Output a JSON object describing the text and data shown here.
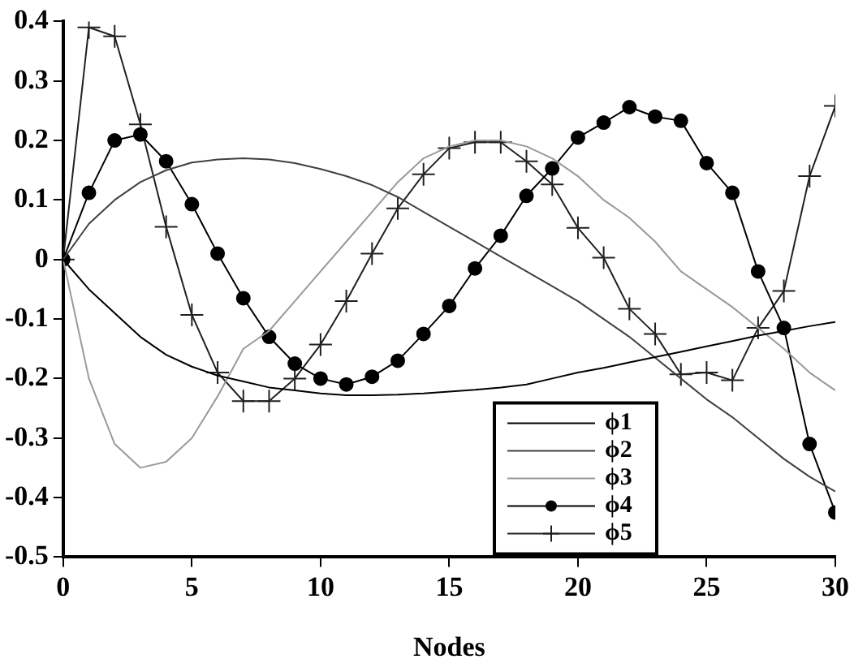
{
  "chart_data": {
    "type": "line",
    "xlabel": "Nodes",
    "x": [
      0,
      1,
      2,
      3,
      4,
      5,
      6,
      7,
      8,
      9,
      10,
      11,
      12,
      13,
      14,
      15,
      16,
      17,
      18,
      19,
      20,
      21,
      22,
      23,
      24,
      25,
      26,
      27,
      28,
      29,
      30
    ],
    "xlim": [
      0,
      30
    ],
    "xticks": [
      0,
      5,
      10,
      15,
      20,
      25,
      30
    ],
    "ylim": [
      -0.5,
      0.4
    ],
    "yticks": [
      -0.5,
      -0.4,
      -0.3,
      -0.2,
      -0.1,
      0,
      0.1,
      0.2,
      0.3,
      0.4
    ],
    "grid": false,
    "legend": "bottom right",
    "line_style": "solid",
    "series": [
      {
        "name": "ϕ1",
        "color": "#000000",
        "marker": "none",
        "values": [
          0,
          -0.05,
          -0.09,
          -0.13,
          -0.16,
          -0.18,
          -0.195,
          -0.205,
          -0.215,
          -0.22,
          -0.225,
          -0.228,
          -0.228,
          -0.227,
          -0.225,
          -0.222,
          -0.219,
          -0.215,
          -0.21,
          -0.2,
          -0.19,
          -0.182,
          -0.173,
          -0.164,
          -0.155,
          -0.146,
          -0.137,
          -0.128,
          -0.12,
          -0.112,
          -0.105
        ]
      },
      {
        "name": "ϕ2",
        "color": "#404040",
        "marker": "none",
        "values": [
          0,
          0.06,
          0.1,
          0.13,
          0.15,
          0.163,
          0.168,
          0.17,
          0.168,
          0.162,
          0.152,
          0.14,
          0.125,
          0.105,
          0.08,
          0.055,
          0.03,
          0.005,
          -0.02,
          -0.045,
          -0.07,
          -0.1,
          -0.13,
          -0.165,
          -0.2,
          -0.235,
          -0.265,
          -0.3,
          -0.335,
          -0.365,
          -0.39
        ]
      },
      {
        "name": "ϕ3",
        "color": "#999999",
        "marker": "none",
        "values": [
          0,
          -0.2,
          -0.31,
          -0.35,
          -0.34,
          -0.3,
          -0.23,
          -0.15,
          -0.12,
          -0.07,
          -0.02,
          0.03,
          0.08,
          0.13,
          0.17,
          0.19,
          0.2,
          0.2,
          0.19,
          0.17,
          0.14,
          0.1,
          0.07,
          0.03,
          -0.02,
          -0.05,
          -0.08,
          -0.115,
          -0.15,
          -0.19,
          -0.22
        ]
      },
      {
        "name": "ϕ4",
        "color": "#000000",
        "marker": "circle",
        "values": [
          0,
          0.112,
          0.2,
          0.21,
          0.165,
          0.093,
          0.01,
          -0.065,
          -0.13,
          -0.175,
          -0.2,
          -0.21,
          -0.197,
          -0.17,
          -0.125,
          -0.078,
          -0.015,
          0.04,
          0.107,
          0.153,
          0.205,
          0.23,
          0.256,
          0.24,
          0.233,
          0.162,
          0.112,
          -0.02,
          -0.115,
          -0.31,
          -0.425
        ]
      },
      {
        "name": "ϕ5",
        "color": "#202020",
        "marker": "cross",
        "values": [
          0,
          0.39,
          0.375,
          0.227,
          0.055,
          -0.093,
          -0.19,
          -0.238,
          -0.238,
          -0.2,
          -0.143,
          -0.07,
          0.01,
          0.086,
          0.143,
          0.187,
          0.197,
          0.197,
          0.165,
          0.126,
          0.053,
          0.003,
          -0.083,
          -0.125,
          -0.193,
          -0.19,
          -0.203,
          -0.115,
          -0.053,
          0.14,
          0.258
        ]
      }
    ]
  }
}
